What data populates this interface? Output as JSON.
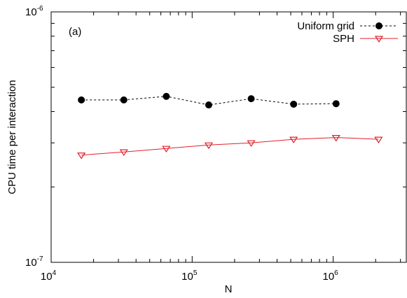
{
  "chart_data": {
    "type": "line",
    "panel_label": "(a)",
    "xlabel": "N",
    "ylabel": "CPU time per interaction",
    "x_scale": "log",
    "y_scale": "log",
    "xlim": [
      10000,
      3300000
    ],
    "ylim": [
      1e-07,
      1e-06
    ],
    "x_ticks": [
      {
        "value": 10000,
        "base": "10",
        "exp": "4"
      },
      {
        "value": 100000,
        "base": "10",
        "exp": "5"
      },
      {
        "value": 1000000,
        "base": "10",
        "exp": "6"
      }
    ],
    "y_ticks": [
      {
        "value": 1e-07,
        "base": "10",
        "exp": "-7"
      },
      {
        "value": 1e-06,
        "base": "10",
        "exp": "-6"
      }
    ],
    "grid": false,
    "legend_position": "top-right",
    "series": [
      {
        "name": "Uniform grid",
        "color": "#000000",
        "line_style": "dashed",
        "marker": "filled-circle",
        "x": [
          16384,
          32768,
          65536,
          131072,
          262144,
          524288,
          1048576
        ],
        "y": [
          4.45e-07,
          4.45e-07,
          4.6e-07,
          4.25e-07,
          4.5e-07,
          4.28e-07,
          4.3e-07
        ]
      },
      {
        "name": "SPH",
        "color": "#e0202a",
        "line_style": "solid",
        "marker": "open-down-triangle",
        "x": [
          16384,
          32768,
          65536,
          131072,
          262144,
          524288,
          1048576,
          2097152
        ],
        "y": [
          2.68e-07,
          2.76e-07,
          2.85e-07,
          2.94e-07,
          3e-07,
          3.1e-07,
          3.15e-07,
          3.1e-07
        ]
      }
    ]
  }
}
